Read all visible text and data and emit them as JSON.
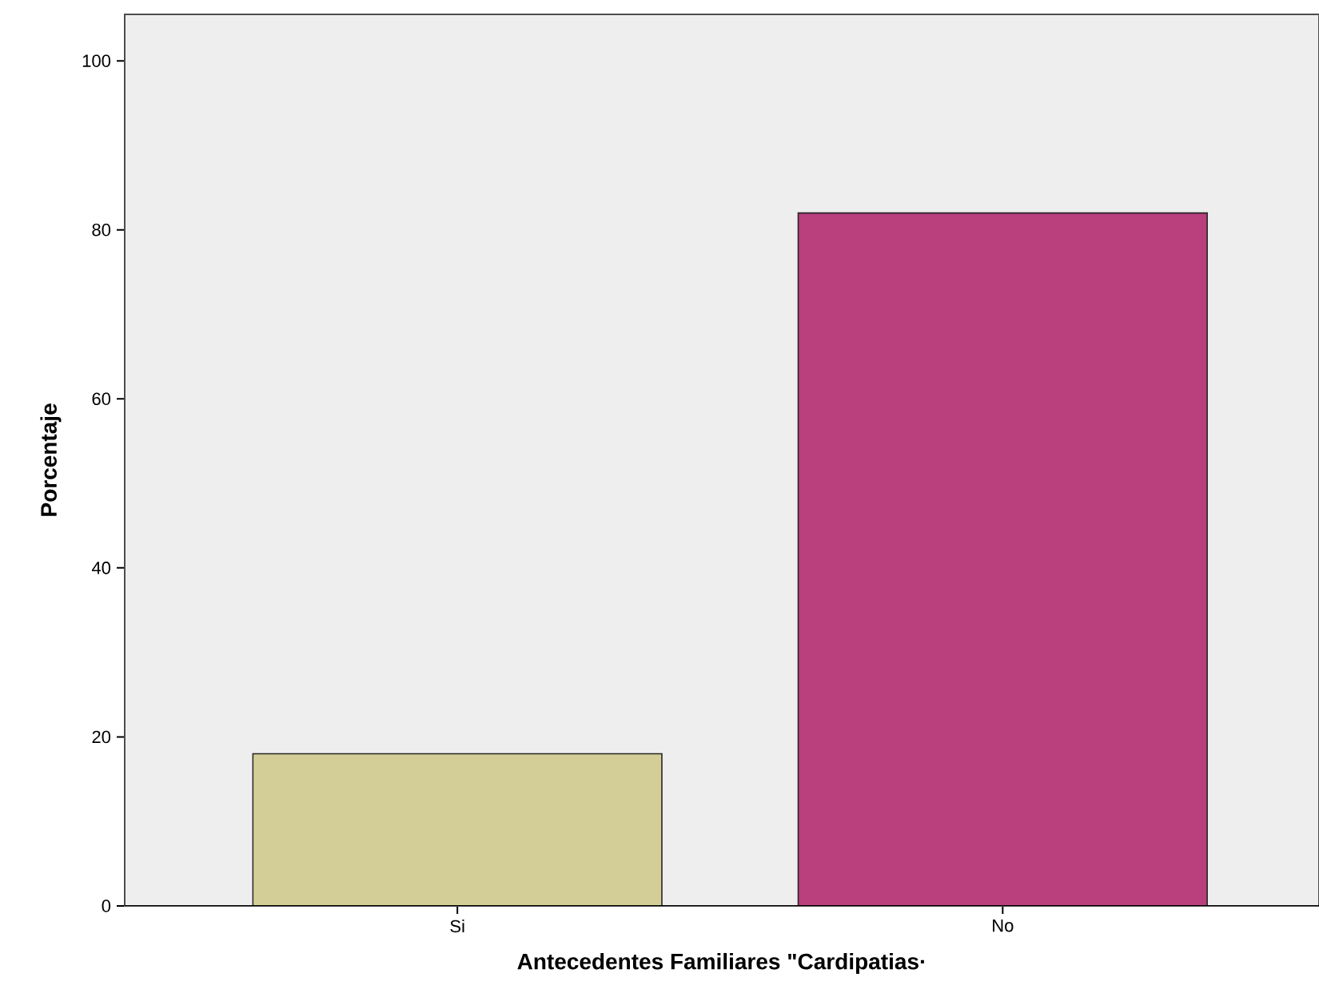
{
  "chart_data": {
    "type": "bar",
    "xlabel": "Antecedentes Familiares \"Cardipatias·",
    "ylabel": "Porcentaje",
    "categories": [
      "Si",
      "No"
    ],
    "values": [
      18,
      82
    ],
    "colors": [
      "#d3ce97",
      "#b93f7d"
    ],
    "ylim": [
      0,
      105.5
    ],
    "yticks": [
      0,
      20,
      40,
      60,
      80,
      100
    ],
    "grid": false
  }
}
